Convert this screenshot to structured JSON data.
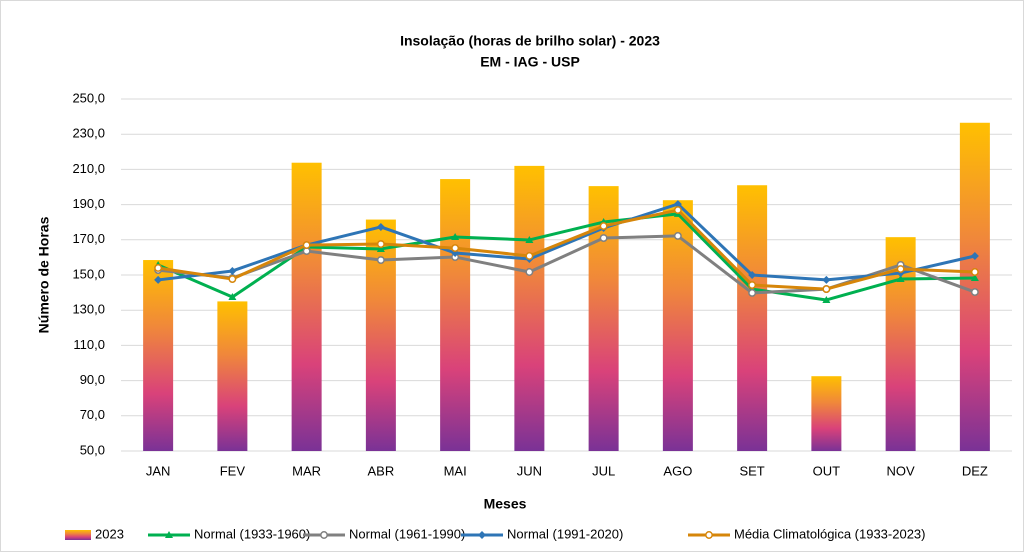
{
  "chart_data": {
    "type": "combo",
    "title": "Insolação (horas de brilho solar) - 2023",
    "subtitle": "EM - IAG - USP",
    "x_label": "Meses",
    "y_label": "Número de Horas",
    "categories": [
      "JAN",
      "FEV",
      "MAR",
      "ABR",
      "MAI",
      "JUN",
      "JUL",
      "AGO",
      "SET",
      "OUT",
      "NOV",
      "DEZ"
    ],
    "ylim": [
      50,
      250
    ],
    "yticks": [
      {
        "value": 50,
        "label": "50,0"
      },
      {
        "value": 70,
        "label": "70,0"
      },
      {
        "value": 90,
        "label": "90,0"
      },
      {
        "value": 110,
        "label": "110,0"
      },
      {
        "value": 130,
        "label": "130,0"
      },
      {
        "value": 150,
        "label": "150,0"
      },
      {
        "value": 170,
        "label": "170,0"
      },
      {
        "value": 190,
        "label": "190,0"
      },
      {
        "value": 210,
        "label": "210,0"
      },
      {
        "value": 230,
        "label": "230,0"
      },
      {
        "value": 250,
        "label": "250,0"
      }
    ],
    "grid": true,
    "legend": "bottom",
    "series": [
      {
        "name": "2023",
        "type": "bar",
        "color": "gradient",
        "values": [
          158.5,
          135,
          213.8,
          181.5,
          204.5,
          212,
          200.5,
          192.5,
          201,
          92.5,
          171.5,
          236.5
        ]
      },
      {
        "name": "Normal (1933-1960)",
        "type": "line",
        "marker": "triangle",
        "color": "#00b050",
        "values": [
          155.7,
          137.5,
          165.9,
          164.8,
          171.6,
          169.9,
          180.1,
          184.7,
          142,
          135.8,
          147.7,
          148.3
        ]
      },
      {
        "name": "Normal (1961-1990)",
        "type": "line",
        "marker": "circle",
        "color": "#808080",
        "values": [
          152.8,
          148.3,
          163.6,
          158.5,
          160.2,
          151.7,
          171,
          172.2,
          139.8,
          142,
          155.7,
          140.3
        ]
      },
      {
        "name": "Normal (1991-2020)",
        "type": "line",
        "marker": "diamond",
        "color": "#2e75b6",
        "values": [
          147.2,
          152.3,
          167,
          177.3,
          162.5,
          159.1,
          176.7,
          190.3,
          150,
          147.2,
          151.1,
          160.8
        ]
      },
      {
        "name": "Média Climatológica (1933-2023)",
        "type": "line",
        "marker": "circle",
        "color": "#d6860a",
        "values": [
          154,
          147.7,
          167,
          167.6,
          165.3,
          160.8,
          177.8,
          186.9,
          144.3,
          142,
          153.4,
          151.7
        ]
      }
    ]
  }
}
